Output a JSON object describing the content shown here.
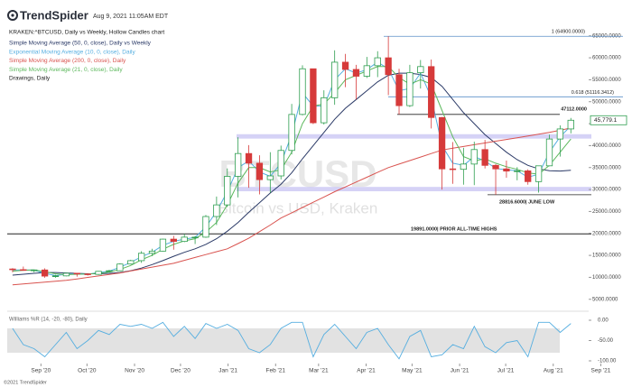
{
  "chart_data": {
    "type": "candlestick",
    "brand": "TrendSpider",
    "timestamp": "Aug 9, 2021 11:05AM EDT",
    "title": "KRAKEN:^BTCUSD, Daily vs Weekly, Hollow Candles chart",
    "drawings_label": "Drawings, Daily",
    "watermark": "BTCUSD",
    "watermark_subtitle": "Bitcoin vs USD, Kraken",
    "copyright": "©2021 TrendSpider",
    "up_color": "#2e9e4f",
    "down_color": "#d63a3a",
    "x": [
      0.5,
      1.5,
      2.5,
      3.5,
      4.5,
      5.5,
      6.5,
      7.5,
      8.5,
      9.5,
      10.5,
      11.5,
      12.5,
      13.5,
      14.5,
      15.5,
      16.5,
      17.5,
      18.5,
      19.5,
      20.5,
      21.5,
      22.5,
      23.5,
      24.5,
      25.5,
      26.5,
      27.5,
      28.5,
      29.5,
      30.5,
      31.5,
      32.5,
      33.5,
      34.5,
      35.5,
      36.5,
      37.5,
      38.5,
      39.5,
      40.5,
      41.5,
      42.5,
      43.5,
      44.5,
      45.5,
      46.5,
      47.5,
      48.5,
      49.5,
      50.5,
      51.5,
      52.5
    ],
    "open": [
      11900,
      11750,
      11650,
      11680,
      10280,
      10330,
      10930,
      10770,
      10670,
      11370,
      11500,
      13030,
      13800,
      15480,
      15970,
      18700,
      18180,
      19150,
      19150,
      23850,
      26500,
      33000,
      38200,
      36000,
      32250,
      33100,
      38900,
      47100,
      57500,
      45200,
      50900,
      59000,
      57350,
      55800,
      58200,
      60000,
      56150,
      49100,
      56600,
      58000,
      46400,
      34700,
      34600,
      35800,
      39100,
      35500,
      34700,
      34200,
      34250,
      31800,
      35400,
      41500,
      43800
    ],
    "high": [
      12100,
      12450,
      11700,
      12050,
      10600,
      11100,
      10950,
      10950,
      11450,
      11700,
      13200,
      14000,
      15950,
      16500,
      18800,
      19450,
      19900,
      19400,
      24200,
      28400,
      34800,
      41900,
      40100,
      37800,
      38500,
      40000,
      49500,
      58300,
      57500,
      52600,
      61700,
      60900,
      58400,
      60200,
      61500,
      64900,
      57500,
      58400,
      59500,
      59600,
      46500,
      40800,
      39500,
      40900,
      41300,
      35800,
      36600,
      35100,
      34600,
      35400,
      42500,
      44600,
      46300
    ],
    "low": [
      11150,
      11500,
      11150,
      9900,
      9900,
      10250,
      10150,
      10400,
      10550,
      11250,
      11400,
      12950,
      13300,
      14850,
      15900,
      16300,
      18000,
      17600,
      19000,
      21900,
      26000,
      28200,
      30400,
      28900,
      29300,
      32300,
      38000,
      46900,
      44900,
      44800,
      49300,
      53300,
      50500,
      55400,
      55600,
      51500,
      47100,
      48800,
      53000,
      43900,
      30000,
      31300,
      31100,
      31000,
      34800,
      28800,
      32700,
      32100,
      31100,
      29300,
      35300,
      37500,
      42800
    ],
    "close": [
      11750,
      11650,
      11680,
      10280,
      10330,
      10930,
      10770,
      10670,
      11370,
      11500,
      13030,
      13800,
      15480,
      15970,
      18700,
      18180,
      19150,
      19150,
      23850,
      26500,
      33000,
      38200,
      36000,
      32250,
      33100,
      38900,
      47100,
      57500,
      45200,
      50900,
      59000,
      57350,
      55800,
      58200,
      60000,
      56150,
      49100,
      56600,
      58000,
      46400,
      34700,
      34600,
      35800,
      39100,
      35500,
      34700,
      34200,
      34250,
      31800,
      35400,
      41500,
      43800,
      45779
    ],
    "series": [
      {
        "name": "Simple Moving Average (50, 0, close), Daily vs Weekly",
        "color": "#2b3a67",
        "values": [
          10500,
          10700,
          10900,
          11100,
          11100,
          11000,
          10900,
          10800,
          10800,
          10900,
          11100,
          11500,
          12100,
          12900,
          13800,
          14800,
          15700,
          16500,
          17500,
          18800,
          20500,
          22500,
          24800,
          27000,
          29200,
          31200,
          33800,
          37000,
          40000,
          43000,
          46000,
          48500,
          50500,
          52500,
          54500,
          56000,
          56500,
          56500,
          56200,
          55500,
          53500,
          50500,
          47500,
          45000,
          42500,
          40500,
          38500,
          36800,
          35500,
          34700,
          34300,
          34200,
          34400
        ]
      },
      {
        "name": "Exponential Moving Average (10, 0, close), Daily",
        "color": "#55aee0",
        "values": [
          11700,
          11700,
          11650,
          10900,
          10400,
          10700,
          10800,
          10700,
          11100,
          11400,
          12300,
          13400,
          14700,
          15700,
          17300,
          18200,
          18700,
          19100,
          21500,
          25000,
          29500,
          35000,
          36500,
          34000,
          33000,
          36000,
          42500,
          52000,
          49000,
          49000,
          55000,
          57500,
          56500,
          57300,
          59000,
          57500,
          52500,
          53000,
          56500,
          51000,
          40000,
          36000,
          35500,
          37500,
          36500,
          34800,
          34500,
          34300,
          32800,
          33500,
          38500,
          42000,
          44500
        ]
      },
      {
        "name": "Simple Moving Average (200, 0, close), Daily",
        "color": "#d9534f",
        "values": [
          8300,
          8500,
          8700,
          8900,
          9100,
          9300,
          9640,
          9980,
          10320,
          10660,
          11000,
          11440,
          11880,
          12320,
          12760,
          13200,
          13860,
          14520,
          15180,
          15840,
          16500,
          17700,
          18900,
          20400,
          21900,
          23500,
          24700,
          25900,
          27100,
          28300,
          29500,
          30600,
          31700,
          32800,
          33900,
          35000,
          35800,
          36600,
          37400,
          38200,
          39000,
          39400,
          39800,
          40200,
          40600,
          41000,
          41400,
          41800,
          42200,
          42600,
          43000,
          43500,
          44000
        ]
      },
      {
        "name": "Simple Moving Average (21, 0, close), Daily",
        "color": "#5cb85c",
        "values": [
          11400,
          11600,
          11700,
          11300,
          10800,
          10600,
          10700,
          10750,
          10900,
          11200,
          11800,
          12700,
          14000,
          15000,
          16400,
          17500,
          18300,
          18800,
          20300,
          22500,
          26500,
          31500,
          35000,
          35000,
          34000,
          34500,
          38500,
          45000,
          49000,
          49500,
          52000,
          55000,
          56000,
          57000,
          58000,
          58000,
          55500,
          54000,
          55000,
          54000,
          48000,
          42000,
          37500,
          36500,
          37000,
          36000,
          35200,
          34600,
          33800,
          33500,
          35500,
          38500,
          41500
        ]
      }
    ],
    "xlim": [
      0,
      55
    ],
    "xticks": [
      {
        "value": 3.14,
        "label": "Sep '20"
      },
      {
        "value": 7.43,
        "label": "Oct '20"
      },
      {
        "value": 11.86,
        "label": "Nov '20"
      },
      {
        "value": 16.14,
        "label": "Dec '20"
      },
      {
        "value": 20.57,
        "label": "Jan '21"
      },
      {
        "value": 25,
        "label": "Feb '21"
      },
      {
        "value": 29,
        "label": "Mar '21"
      },
      {
        "value": 33.43,
        "label": "Apr '21"
      },
      {
        "value": 37.71,
        "label": "May '21"
      },
      {
        "value": 42.14,
        "label": "Jun '21"
      },
      {
        "value": 46.43,
        "label": "Jul '21"
      },
      {
        "value": 50.86,
        "label": "Aug '21"
      },
      {
        "value": 55.29,
        "label": "Sep '21"
      }
    ],
    "ylim": [
      3000,
      67000
    ],
    "yticks": [
      {
        "value": 65000,
        "label": "65000.0000"
      },
      {
        "value": 60000,
        "label": "60000.0000"
      },
      {
        "value": 55000,
        "label": "55000.0000"
      },
      {
        "value": 50000,
        "label": "50000.0000"
      },
      {
        "value": 45000,
        "label": "45000.0000"
      },
      {
        "value": 40000,
        "label": "40000.0000"
      },
      {
        "value": 35000,
        "label": "35000.0000"
      },
      {
        "value": 30000,
        "label": "30000.0000"
      },
      {
        "value": 25000,
        "label": "25000.0000"
      },
      {
        "value": 20000,
        "label": "20000.0000"
      },
      {
        "value": 15000,
        "label": "15000.0000"
      },
      {
        "value": 10000,
        "label": "10000.0000"
      },
      {
        "value": 5000,
        "label": "5000.0000"
      }
    ],
    "last_price": {
      "value": 45779.1,
      "label": "45,779.1"
    },
    "levels": [
      {
        "value": 64900,
        "label": "1 (64900.0000)"
      },
      {
        "value": 51116.3412,
        "label": "0.618 (51116.3412)"
      },
      {
        "value": 47112,
        "label": "47112.0000"
      },
      {
        "value": 28816.6,
        "label": "28816.6000| JUNE LOW"
      },
      {
        "value": 19891,
        "label": "19891.0000| PRIOR ALL-TIME HIGHS"
      }
    ],
    "zones": [
      [
        41600,
        42600
      ],
      [
        29600,
        30600
      ]
    ],
    "oscillator": {
      "name": "Williams %R (14, -20, -80), Daily",
      "color": "#55aee0",
      "band": [
        -20,
        -80
      ],
      "values": [
        -20,
        -60,
        -70,
        -90,
        -60,
        -30,
        -70,
        -50,
        -25,
        -35,
        -10,
        -15,
        -10,
        -20,
        -5,
        -40,
        -15,
        -45,
        -8,
        -20,
        -10,
        -25,
        -70,
        -80,
        -60,
        -20,
        -5,
        -5,
        -90,
        -35,
        -10,
        -40,
        -70,
        -30,
        -20,
        -60,
        -95,
        -40,
        -25,
        -90,
        -85,
        -60,
        -70,
        -15,
        -65,
        -80,
        -55,
        -50,
        -90,
        -5,
        -5,
        -30,
        -8
      ],
      "ylim": [
        -100,
        0
      ],
      "yticks": [
        {
          "value": 0,
          "label": "0.00"
        },
        {
          "value": -50,
          "label": "-50.00"
        },
        {
          "value": -100,
          "label": "-100.00"
        }
      ]
    }
  }
}
